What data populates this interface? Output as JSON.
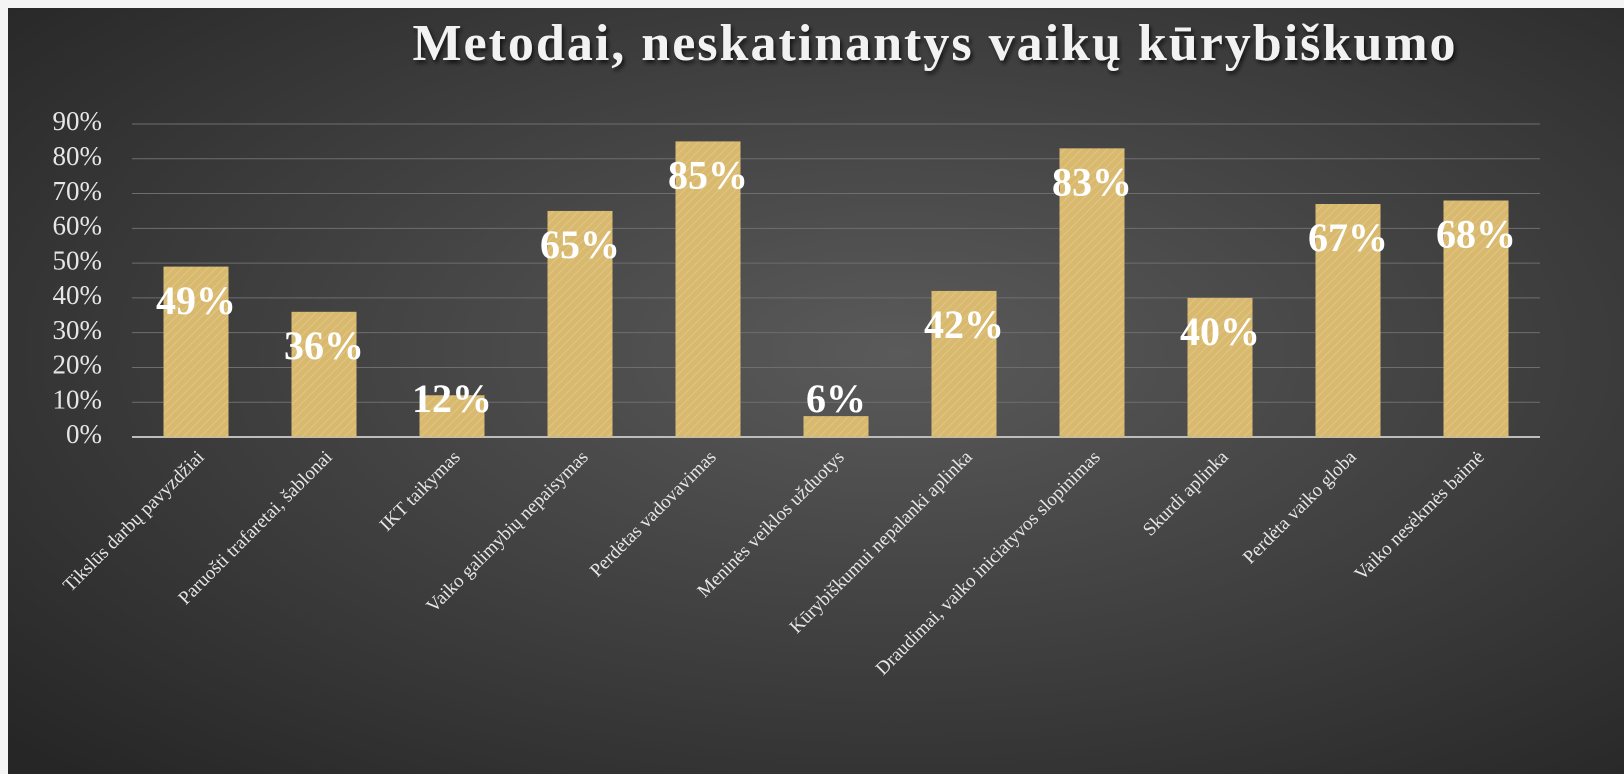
{
  "chart_data": {
    "type": "bar",
    "title": "Metodai, neskatinantys vaikų kūrybiškumo",
    "categories": [
      "Tikslūs darbų pavyzdžiai",
      "Paruošti trafaretai, šablonai",
      "IKT taikymas",
      "Vaiko galimybių nepaisymas",
      "Perdėtas vadovavimas",
      "Meninės veiklos užduotys",
      "Kūrybiškumui nepalanki aplinka",
      "Draudimai, vaiko iniciatyvos slopinimas",
      "Skurdi aplinka",
      "Perdėta vaiko globa",
      "Vaiko nesėkmės baimė"
    ],
    "values": [
      49,
      36,
      12,
      65,
      85,
      6,
      42,
      83,
      40,
      67,
      68
    ],
    "value_labels": [
      "49%",
      "36%",
      "12%",
      "65%",
      "85%",
      "6%",
      "42%",
      "83%",
      "40%",
      "67%",
      "68%"
    ],
    "color": "#d8b96e",
    "ylim": [
      0,
      90
    ],
    "yticks": [
      {
        "value": 0,
        "label": "0%"
      },
      {
        "value": 10,
        "label": "10%"
      },
      {
        "value": 20,
        "label": "20%"
      },
      {
        "value": 30,
        "label": "30%"
      },
      {
        "value": 40,
        "label": "40%"
      },
      {
        "value": 50,
        "label": "50%"
      },
      {
        "value": 60,
        "label": "60%"
      },
      {
        "value": 70,
        "label": "70%"
      },
      {
        "value": 80,
        "label": "80%"
      },
      {
        "value": 90,
        "label": "90%"
      }
    ],
    "grid": true
  }
}
